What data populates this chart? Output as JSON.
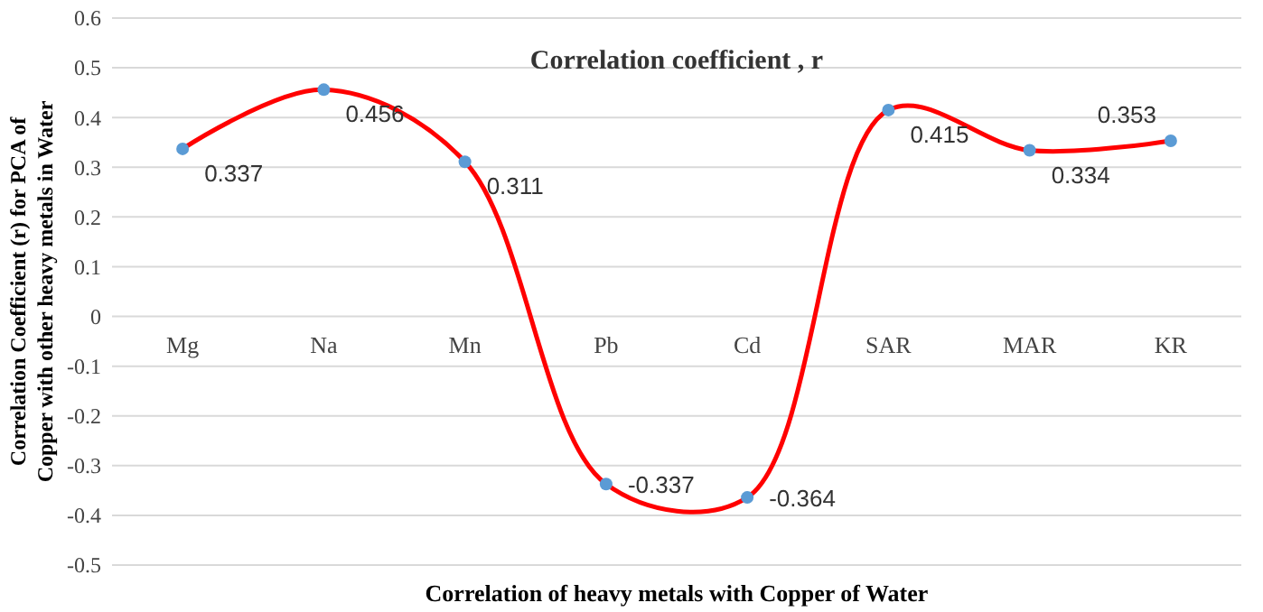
{
  "chart_data": {
    "type": "line",
    "title": "Correlation coefficient , r",
    "xlabel": "Correlation of heavy metals with Copper of Water",
    "ylabel": "Correlation Coefficient (r) for PCA of Copper with other heavy metals in Water",
    "categories": [
      "Mg",
      "Na",
      "Mn",
      "Pb",
      "Cd",
      "SAR",
      "MAR",
      "KR"
    ],
    "series": [
      {
        "color": "#ff0000",
        "values": [
          0.337,
          0.456,
          0.311,
          -0.337,
          -0.364,
          0.415,
          0.334,
          0.353
        ]
      }
    ],
    "ylim": [
      -0.5,
      0.6
    ],
    "yticks": [
      -0.5,
      -0.4,
      -0.3,
      -0.2,
      -0.1,
      0,
      0.1,
      0.2,
      0.3,
      0.4,
      0.5,
      0.6
    ],
    "grid": "y",
    "marker": "circle",
    "line_style": "solid",
    "data_labels": true
  }
}
